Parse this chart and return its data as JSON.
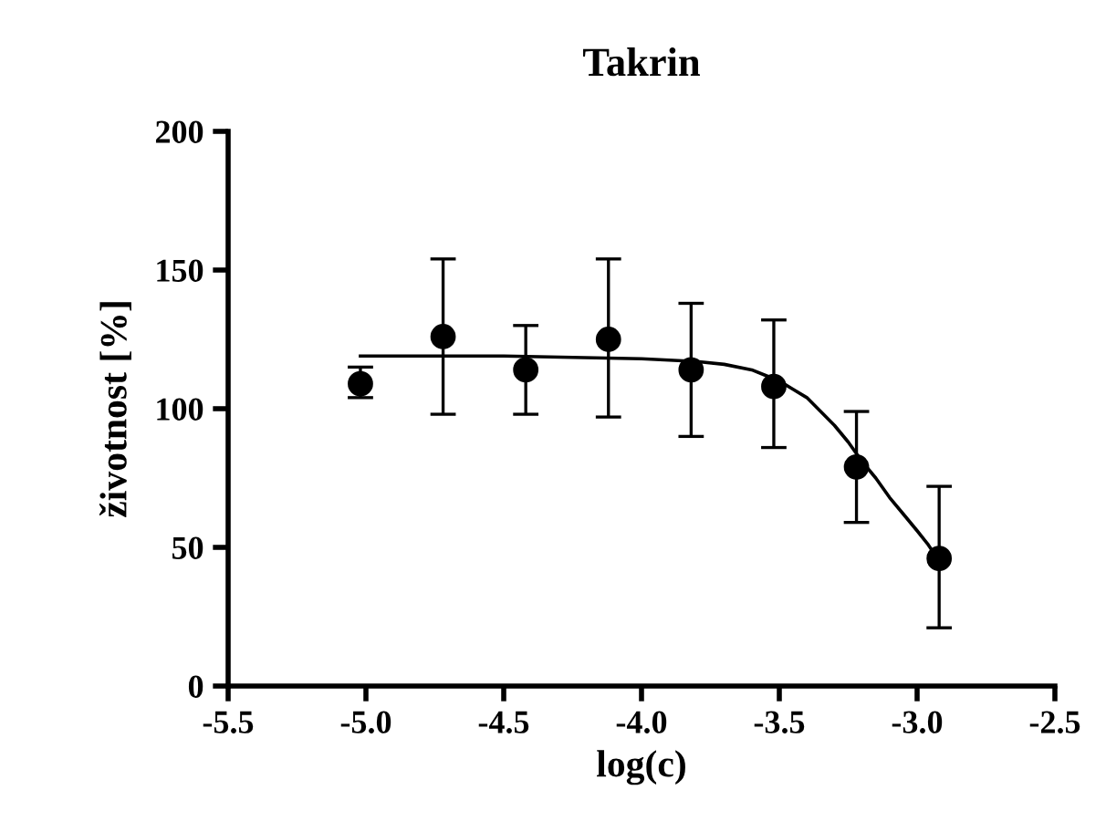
{
  "chart_data": {
    "type": "scatter",
    "title": "Takrin",
    "xlabel": "log(c)",
    "ylabel": "životnost [%]",
    "xlim": [
      -5.5,
      -2.5
    ],
    "xticks": [
      {
        "value": -5.5,
        "label": "-5.5"
      },
      {
        "value": -5.0,
        "label": "-5.0"
      },
      {
        "value": -4.5,
        "label": "-4.5"
      },
      {
        "value": -4.0,
        "label": "-4.0"
      },
      {
        "value": -3.5,
        "label": "-3.5"
      },
      {
        "value": -3.0,
        "label": "-3.0"
      },
      {
        "value": -2.5,
        "label": "-2.5"
      }
    ],
    "ylim": [
      0,
      200
    ],
    "yticks": [
      0,
      50,
      100,
      150,
      200
    ],
    "grid": false,
    "series": [
      {
        "color": "#000000",
        "marker": "circle",
        "x": [
          -5.02,
          -4.72,
          -4.42,
          -4.12,
          -3.82,
          -3.52,
          -3.22,
          -2.92
        ],
        "values": [
          109,
          126,
          114,
          125,
          114,
          108,
          79,
          46
        ],
        "errors": [
          [
            104,
            115
          ],
          [
            98,
            154
          ],
          [
            98,
            130
          ],
          [
            97,
            154
          ],
          [
            90,
            138
          ],
          [
            86,
            132
          ],
          [
            59,
            99
          ],
          [
            21,
            72
          ]
        ]
      },
      {
        "type": "line",
        "color": "#000000",
        "marker": "none",
        "x": [
          -5.02,
          -4.5,
          -4.0,
          -3.8,
          -3.7,
          -3.6,
          -3.55,
          -3.5,
          -3.45,
          -3.4,
          -3.35,
          -3.3,
          -3.25,
          -3.2,
          -3.15,
          -3.1,
          -3.05,
          -3.0,
          -2.96,
          -2.92
        ],
        "values": [
          119,
          119,
          118,
          117,
          116,
          114,
          112,
          110,
          107,
          104,
          99,
          94,
          88,
          81,
          75,
          68,
          62,
          56,
          51,
          45
        ]
      }
    ]
  }
}
